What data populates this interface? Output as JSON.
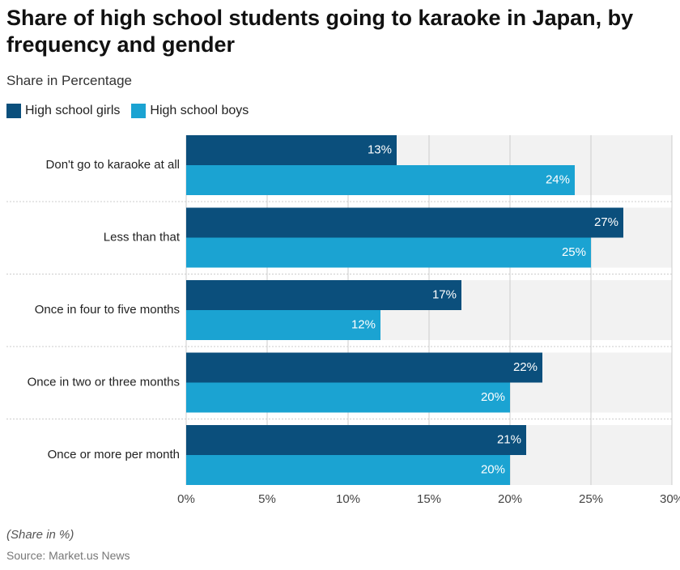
{
  "chart_data": {
    "type": "bar",
    "orientation": "horizontal",
    "title": "Share of high school students going to karaoke in Japan, by frequency and gender",
    "subtitle": "Share in Percentage",
    "categories": [
      "Don't go to karaoke at all",
      "Less than that",
      "Once in four to five months",
      "Once in two or three months",
      "Once or more per month"
    ],
    "series": [
      {
        "name": "High school girls",
        "color": "#0b4f7c",
        "values": [
          13,
          27,
          17,
          22,
          21
        ],
        "value_labels": [
          "13%",
          "27%",
          "17%",
          "22%",
          "21%"
        ]
      },
      {
        "name": "High school boys",
        "color": "#1ba3d2",
        "values": [
          24,
          25,
          12,
          20,
          20
        ],
        "value_labels": [
          "24%",
          "25%",
          "12%",
          "20%",
          "20%"
        ]
      }
    ],
    "xlim": [
      0,
      30
    ],
    "xticks": [
      {
        "value": 0,
        "label": "0%"
      },
      {
        "value": 5,
        "label": "5%"
      },
      {
        "value": 10,
        "label": "10%"
      },
      {
        "value": 15,
        "label": "15%"
      },
      {
        "value": 20,
        "label": "20%"
      },
      {
        "value": 25,
        "label": "25%"
      },
      {
        "value": 30,
        "label": "30%"
      }
    ],
    "grid": true,
    "note": "(Share in %)",
    "source": "Source: Market.us News"
  }
}
